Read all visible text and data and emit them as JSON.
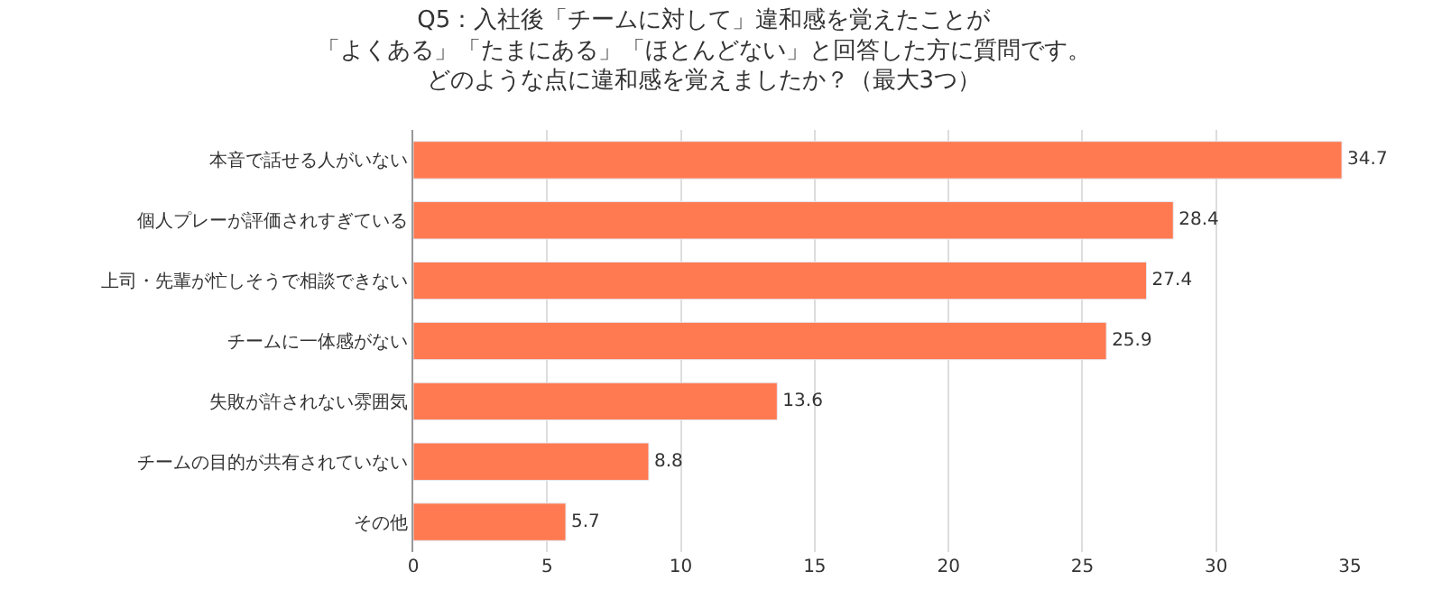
{
  "chart_data": {
    "type": "bar",
    "orientation": "horizontal",
    "title": "Q5：入社後「チームに対して」違和感を覚えたことが",
    "subtitle": "「よくある」「たまにある」「ほとんどない」と回答した方に質問です。",
    "annotations": [
      "どのような点に違和感を覚えましたか？（最大3つ）"
    ],
    "categories": [
      "本音で話せる人がいない",
      "個人プレーが評価されすぎている",
      "上司・先輩が忙しそうで相談できない",
      "チームに一体感がない",
      "失敗が許されない雰囲気",
      "チームの目的が共有されていない",
      "その他"
    ],
    "values": [
      34.7,
      28.4,
      27.4,
      25.9,
      13.6,
      8.8,
      5.7
    ],
    "color": "#ff7a50",
    "data_labels": true,
    "xlim": [
      0,
      35
    ],
    "xticks": [
      0,
      5,
      10,
      15,
      20,
      25,
      30,
      35
    ],
    "grid": "x",
    "legend": false
  }
}
